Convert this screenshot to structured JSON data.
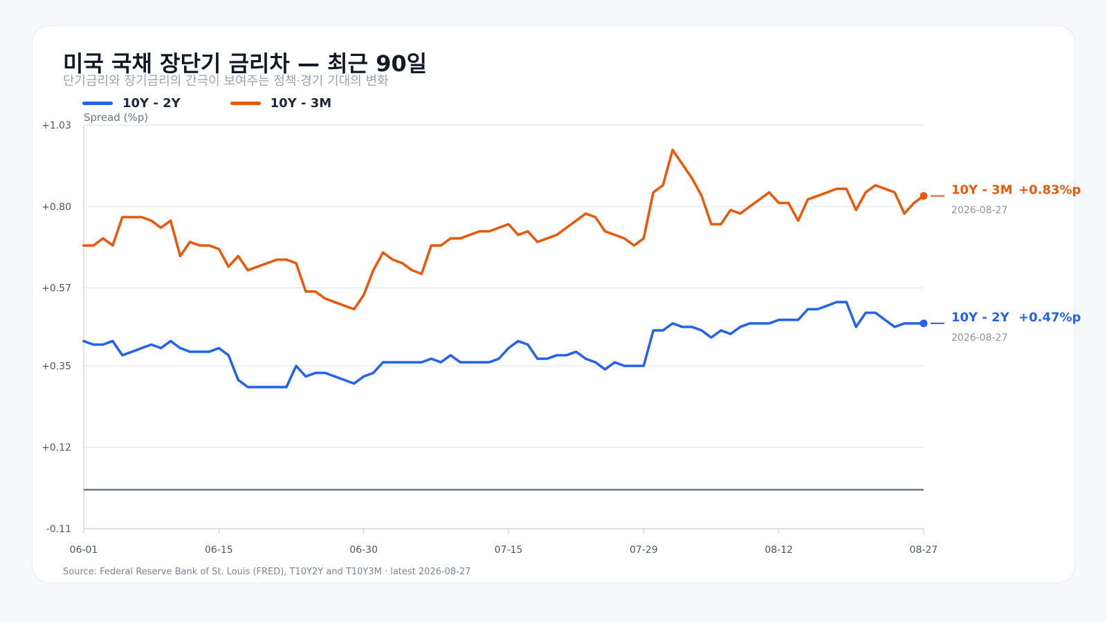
{
  "title": "미국 국채 장단기 금리차 — 최근 90일",
  "subtitle": "단기금리와 장기금리의 간극이 보여주는 정책·경기 기대의 변화",
  "source": "Source: Federal Reserve Bank of St. Louis (FRED), T10Y2Y and T10Y3M · latest 2026-08-27",
  "chart_data": {
    "type": "line",
    "title": "미국 국채 장단기 금리차 — 최근 90일",
    "ylabel": "Spread (%p)",
    "xlabel": "",
    "ylim": [
      -0.11,
      1.03
    ],
    "yticks": [
      "-0.11",
      "+0.12",
      "+0.35",
      "+0.57",
      "+0.80",
      "+1.03"
    ],
    "ytick_values": [
      -0.11,
      0.12,
      0.35,
      0.57,
      0.8,
      1.03
    ],
    "xticks": [
      "06-01",
      "06-15",
      "06-30",
      "07-15",
      "07-29",
      "08-12",
      "08-27"
    ],
    "xtick_days": [
      0,
      14,
      29,
      44,
      58,
      72,
      87
    ],
    "zero_line": 0,
    "grid": "horizontal",
    "legend": "top-left",
    "x": [
      0,
      1,
      2,
      3,
      4,
      5,
      6,
      7,
      8,
      9,
      10,
      11,
      12,
      13,
      14,
      15,
      16,
      17,
      18,
      19,
      20,
      21,
      22,
      23,
      24,
      25,
      26,
      27,
      28,
      29,
      30,
      31,
      32,
      33,
      34,
      35,
      36,
      37,
      38,
      39,
      40,
      41,
      42,
      43,
      44,
      45,
      46,
      47,
      48,
      49,
      50,
      51,
      52,
      53,
      54,
      55,
      56,
      57,
      58,
      59,
      60,
      61,
      62,
      63,
      64,
      65,
      66,
      67,
      68,
      69,
      70,
      71,
      72,
      73,
      74,
      75,
      76,
      77,
      78,
      79,
      80,
      81,
      82,
      83,
      84,
      85,
      86,
      87
    ],
    "series": [
      {
        "name": "10Y - 2Y",
        "color": "#2563eb",
        "end_label": "10Y - 2Y",
        "end_value_label": "+0.47%p",
        "end_date": "2026-08-27",
        "values": [
          0.42,
          0.41,
          0.41,
          0.42,
          0.38,
          0.39,
          0.4,
          0.41,
          0.4,
          0.42,
          0.4,
          0.39,
          0.39,
          0.39,
          0.4,
          0.38,
          0.31,
          0.29,
          0.29,
          0.29,
          0.29,
          0.29,
          0.35,
          0.32,
          0.33,
          0.33,
          0.32,
          0.31,
          0.3,
          0.32,
          0.33,
          0.36,
          0.36,
          0.36,
          0.36,
          0.36,
          0.37,
          0.36,
          0.38,
          0.36,
          0.36,
          0.36,
          0.36,
          0.37,
          0.4,
          0.42,
          0.41,
          0.37,
          0.37,
          0.38,
          0.38,
          0.39,
          0.37,
          0.36,
          0.34,
          0.36,
          0.35,
          0.35,
          0.35,
          0.45,
          0.45,
          0.47,
          0.46,
          0.46,
          0.45,
          0.43,
          0.45,
          0.44,
          0.46,
          0.47,
          0.47,
          0.47,
          0.48,
          0.48,
          0.48,
          0.51,
          0.51,
          0.52,
          0.53,
          0.53,
          0.46,
          0.5,
          0.5,
          0.48,
          0.46,
          0.47,
          0.47,
          0.47
        ]
      },
      {
        "name": "10Y - 3M",
        "color": "#e8590c",
        "end_label": "10Y - 3M",
        "end_value_label": "+0.83%p",
        "end_date": "2026-08-27",
        "values": [
          0.69,
          0.69,
          0.71,
          0.69,
          0.77,
          0.77,
          0.77,
          0.76,
          0.74,
          0.76,
          0.66,
          0.7,
          0.69,
          0.69,
          0.68,
          0.63,
          0.66,
          0.62,
          0.63,
          0.64,
          0.65,
          0.65,
          0.64,
          0.56,
          0.56,
          0.54,
          0.53,
          0.52,
          0.51,
          0.55,
          0.62,
          0.67,
          0.65,
          0.64,
          0.62,
          0.61,
          0.69,
          0.69,
          0.71,
          0.71,
          0.72,
          0.73,
          0.73,
          0.74,
          0.75,
          0.72,
          0.73,
          0.7,
          0.71,
          0.72,
          0.74,
          0.76,
          0.78,
          0.77,
          0.73,
          0.72,
          0.71,
          0.69,
          0.71,
          0.84,
          0.86,
          0.96,
          0.92,
          0.88,
          0.83,
          0.75,
          0.75,
          0.79,
          0.78,
          0.8,
          0.82,
          0.84,
          0.81,
          0.81,
          0.76,
          0.82,
          0.83,
          0.84,
          0.85,
          0.85,
          0.79,
          0.84,
          0.86,
          0.85,
          0.84,
          0.78,
          0.81,
          0.83
        ]
      }
    ]
  }
}
